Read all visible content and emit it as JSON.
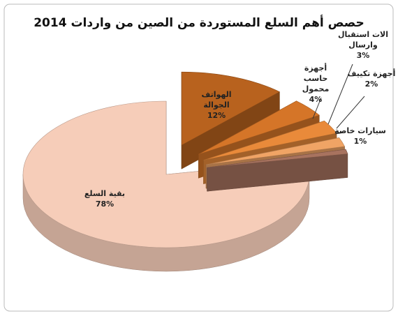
{
  "chart_data": {
    "type": "pie",
    "title": "حصص أهم السلع المستوردة من الصين من واردات 2014",
    "categories": [
      "الهواتف الجوالة",
      "أجهزة حاسب محمول",
      "الات استقبال وارسال",
      "أجهزة تكييف",
      "سيارات خاصة",
      "بقية السلع"
    ],
    "values": [
      12,
      4,
      3,
      2,
      1,
      78
    ],
    "value_labels": [
      "12%",
      "4%",
      "3%",
      "2%",
      "1%",
      "78%"
    ],
    "colors": [
      "#b8621e",
      "#d57528",
      "#e98a3a",
      "#f0a465",
      "#a8735f",
      "#f6cdb9"
    ]
  }
}
